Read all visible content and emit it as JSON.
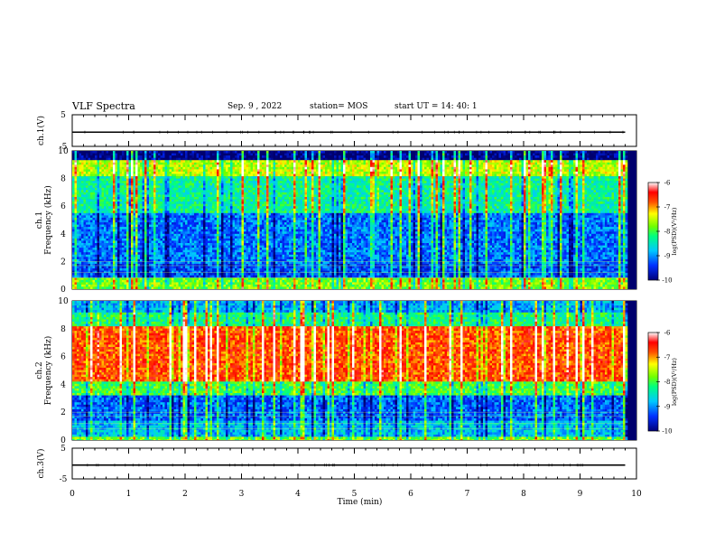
{
  "header": {
    "title": "VLF Spectra",
    "date": "Sep. 9 , 2022",
    "station": "station= MOS",
    "start_ut": "start UT = 14: 40: 1"
  },
  "chart_data": [
    {
      "type": "line",
      "panel": "ch1-waveform",
      "ylabel": "ch.1(V)",
      "ylim": [
        -5,
        5
      ],
      "yticks": [
        "5",
        "-5"
      ],
      "xlim": [
        0,
        10
      ],
      "series": [
        {
          "x": [
            0,
            9.8
          ],
          "values": [
            -0.5,
            -0.5
          ]
        }
      ]
    },
    {
      "type": "heatmap",
      "panel": "ch1-spectrogram",
      "ylabel": "ch.1\nFrequency (kHz)",
      "ylim": [
        0,
        10
      ],
      "yticks": [
        "0",
        "2",
        "4",
        "6",
        "8",
        "10"
      ],
      "xlim": [
        0,
        10
      ],
      "data_end_x": 9.8,
      "colorbar": {
        "label": "log(PSD)(V²/Hz)",
        "ticks": [
          "-6",
          "-7",
          "-8",
          "-9",
          "-10"
        ],
        "range": [
          -10,
          -6
        ]
      }
    },
    {
      "type": "heatmap",
      "panel": "ch2-spectrogram",
      "ylabel": "ch.2\nFrequency (kHz)",
      "ylim": [
        0,
        10
      ],
      "yticks": [
        "0",
        "2",
        "4",
        "6",
        "8",
        "10"
      ],
      "xlim": [
        0,
        10
      ],
      "data_end_x": 9.8,
      "colorbar": {
        "label": "log(PSD)(V²/Hz)",
        "ticks": [
          "-6",
          "-7",
          "-8",
          "-9",
          "-10"
        ],
        "range": [
          -10,
          -6
        ]
      }
    },
    {
      "type": "line",
      "panel": "ch3-waveform",
      "ylabel": "ch.3(V)",
      "ylim": [
        -5,
        5
      ],
      "yticks": [
        "5",
        "-5"
      ],
      "xlim": [
        0,
        10
      ],
      "xlabel": "Time (min)",
      "xticks": [
        "0",
        "1",
        "2",
        "3",
        "4",
        "5",
        "6",
        "7",
        "8",
        "9",
        "10"
      ],
      "series": [
        {
          "x": [
            0,
            9.8
          ],
          "values": [
            -0.5,
            -0.5
          ]
        }
      ]
    }
  ]
}
